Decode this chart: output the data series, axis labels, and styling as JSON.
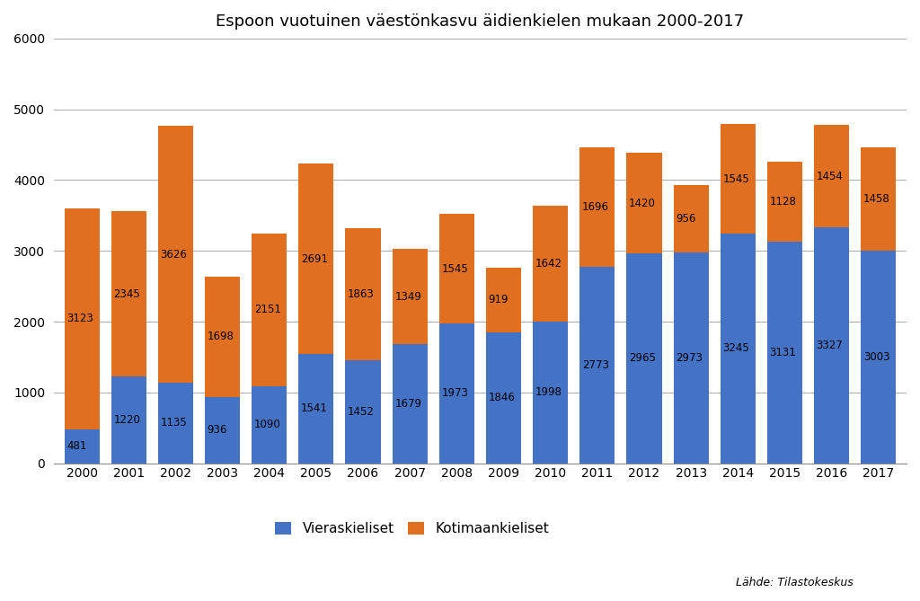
{
  "title": "Espoon vuotuinen väestönkasvu äidienkielen mukaan 2000-2017",
  "years": [
    2000,
    2001,
    2002,
    2003,
    2004,
    2005,
    2006,
    2007,
    2008,
    2009,
    2010,
    2011,
    2012,
    2013,
    2014,
    2015,
    2016,
    2017
  ],
  "vieraskieliset": [
    481,
    1220,
    1135,
    936,
    1090,
    1541,
    1452,
    1679,
    1973,
    1846,
    1998,
    2773,
    2965,
    2973,
    3245,
    3131,
    3327,
    3003
  ],
  "kotimaankieliset": [
    3123,
    2345,
    3626,
    1698,
    2151,
    2691,
    1863,
    1349,
    1545,
    919,
    1642,
    1696,
    1420,
    956,
    1545,
    1128,
    1454,
    1458
  ],
  "color_vieraskieliset": "#4472C4",
  "color_kotimaankieliset": "#E07020",
  "ylim": [
    0,
    6000
  ],
  "yticks": [
    0,
    1000,
    2000,
    3000,
    4000,
    5000,
    6000
  ],
  "legend_labels": [
    "Vieraskieliset",
    "Kotimaankieliset"
  ],
  "source_text": "Lähde: Tilastokeskus",
  "background_color": "#FFFFFF",
  "plot_bg_color": "#FFFFFF",
  "grid_color": "#AAAAAA",
  "label_fontsize": 8.5,
  "title_fontsize": 13,
  "bar_width": 0.75
}
